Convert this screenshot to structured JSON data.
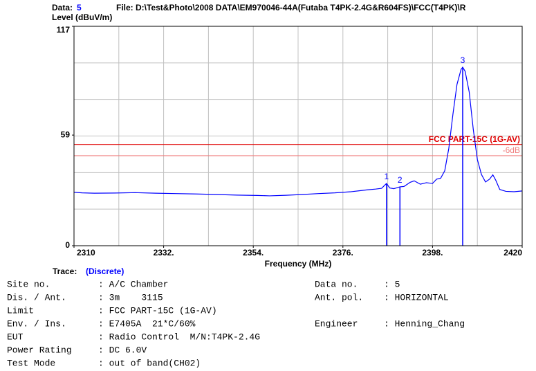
{
  "chart_data": {
    "type": "line",
    "data_label": "Data:",
    "data_number": "5",
    "file": "File: D:\\Test&Photo\\2008 DATA\\EM970046-44A(Futaba T4PK-2.4G&R604FS)\\FCC(T4PK)\\R",
    "y_label": "Level (dBuV/m)",
    "x_label": "Frequency (MHz)",
    "trace_label": "Trace:",
    "trace_mode": "(Discrete)",
    "xlim": [
      2310,
      2420
    ],
    "xticks": [
      2310,
      {
        "value": 2332,
        "label": "2332."
      },
      {
        "value": 2354,
        "label": "2354."
      },
      {
        "value": 2376,
        "label": "2376."
      },
      {
        "value": 2398,
        "label": "2398."
      },
      2420
    ],
    "ylim": [
      0,
      117
    ],
    "yticks": [
      0,
      59,
      117
    ],
    "x_grid": [
      2321,
      2332,
      2343,
      2354,
      2365,
      2376,
      2387,
      2398,
      2409
    ],
    "y_grid": [
      19.5,
      39,
      58.5,
      78,
      97.5
    ],
    "series": [
      {
        "name": "Trace",
        "color": "#0000ff",
        "x": [
          2310,
          2312,
          2315,
          2320,
          2325,
          2330,
          2335,
          2340,
          2345,
          2350,
          2355,
          2358,
          2362,
          2366,
          2370,
          2374,
          2378,
          2380,
          2382,
          2384,
          2385.5,
          2386.7,
          2387.5,
          2388.5,
          2390,
          2391,
          2392.5,
          2393.5,
          2395,
          2396.5,
          2398,
          2399,
          2400,
          2401,
          2402,
          2403,
          2404,
          2405,
          2405.4,
          2406,
          2407,
          2408,
          2409,
          2410,
          2411,
          2412,
          2412.8,
          2413.5,
          2414.5,
          2416,
          2418,
          2420
        ],
        "values": [
          28.5,
          28.2,
          28.0,
          28.1,
          28.3,
          28.0,
          27.8,
          27.6,
          27.3,
          27.0,
          26.8,
          26.6,
          26.9,
          27.3,
          27.8,
          28.2,
          28.8,
          29.3,
          29.8,
          30.2,
          30.6,
          33.2,
          30.8,
          30.4,
          31.4,
          31.6,
          33.8,
          34.6,
          32.8,
          33.6,
          33.2,
          35.5,
          36,
          40,
          52,
          70,
          86,
          94,
          95.2,
          93,
          82,
          62,
          46,
          38,
          34,
          35.5,
          37.8,
          35,
          30,
          29,
          28.8,
          29.2
        ]
      }
    ],
    "markers": [
      {
        "label": "1",
        "x": 2386.7,
        "value": 33.2
      },
      {
        "label": "2",
        "x": 2390,
        "value": 31.4
      },
      {
        "label": "3",
        "x": 2405.4,
        "value": 95.2
      }
    ],
    "marker_color": "#0000ff",
    "limits": [
      {
        "name": "FCC PART-15C (1G-AV)",
        "value": 54,
        "color": "#e00000"
      },
      {
        "name": "-6dB",
        "value": 48,
        "color": "#f08080"
      }
    ],
    "grid_color": "#c0c0c0"
  },
  "info": {
    "left": [
      {
        "label": "Site no.",
        "value": ": A/C Chamber"
      },
      {
        "label": "Dis. / Ant.",
        "value": ": 3m    3115"
      },
      {
        "label": "Limit",
        "value": ": FCC PART-15C (1G-AV)"
      },
      {
        "label": "Env. / Ins.",
        "value": ": E7405A  21*C/60%"
      },
      {
        "label": "EUT",
        "value": ": Radio Control  M/N:T4PK-2.4G"
      },
      {
        "label": "Power Rating",
        "value": ": DC 6.0V"
      },
      {
        "label": "Test Mode",
        "value": ": out of band(CH02)"
      }
    ],
    "right": [
      {
        "label": "Data no.",
        "value": ": 5",
        "row": 0
      },
      {
        "label": "Ant. pol.",
        "value": ": HORIZONTAL",
        "row": 1
      },
      {
        "label": "Engineer",
        "value": ": Henning_Chang",
        "row": 3
      }
    ]
  }
}
